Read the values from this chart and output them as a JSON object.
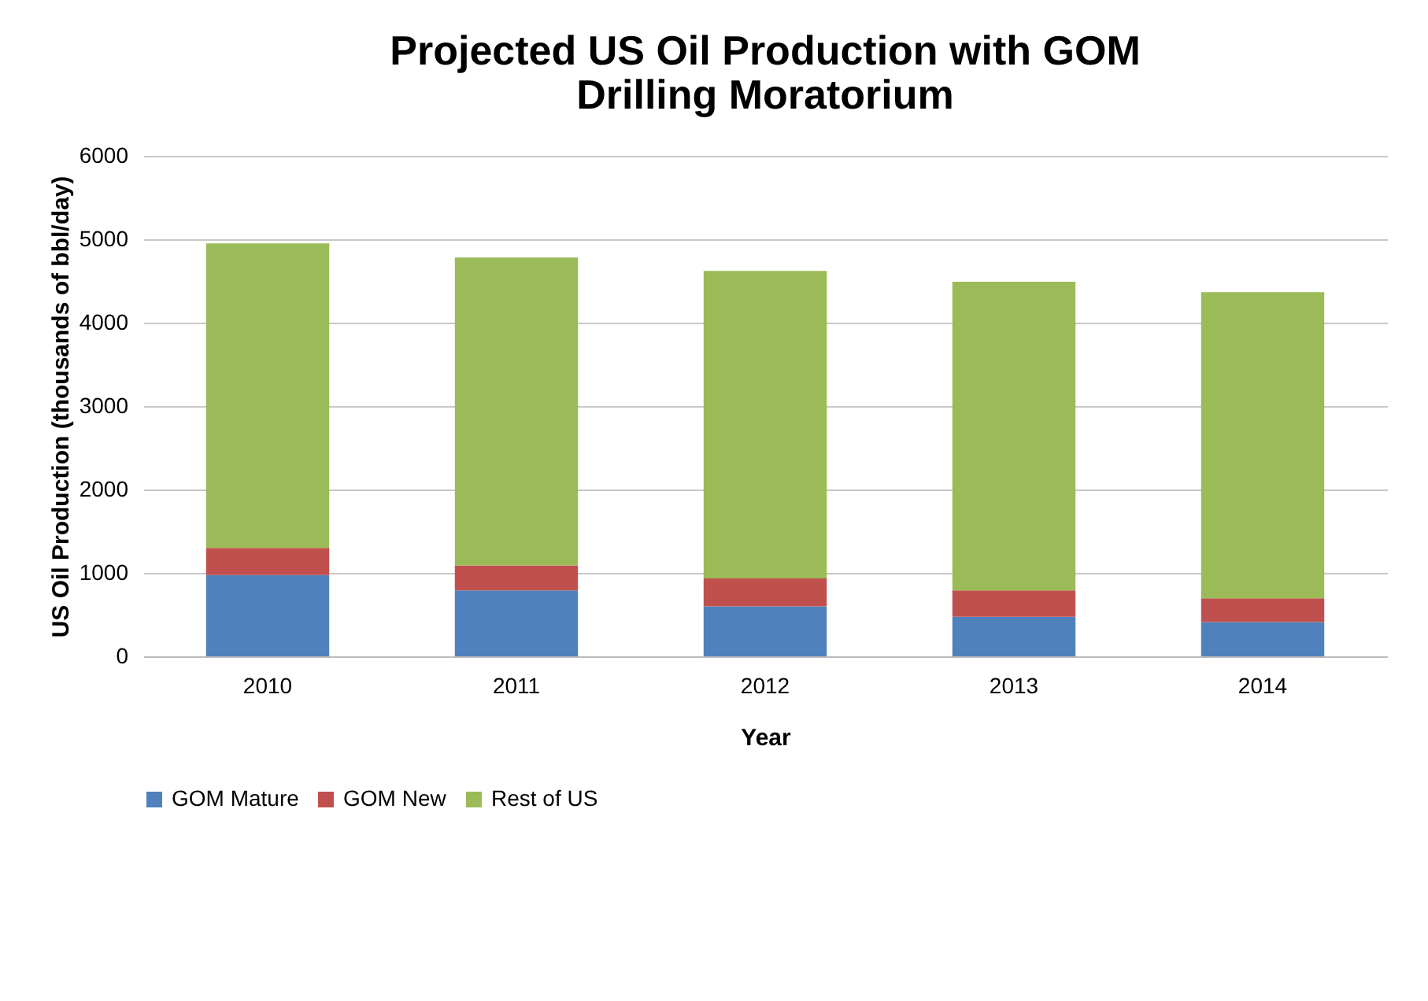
{
  "chart_data": {
    "type": "bar",
    "stacked": true,
    "title": "Projected US Oil Production with GOM Drilling Moratorium",
    "xlabel": "Year",
    "ylabel": "US Oil Production (thousands of bbl/day)",
    "categories": [
      "2010",
      "2011",
      "2012",
      "2013",
      "2014"
    ],
    "series": [
      {
        "name": "GOM Mature",
        "color": "#4f81bd",
        "values": [
          975,
          790,
          600,
          475,
          410
        ]
      },
      {
        "name": "GOM New",
        "color": "#c0504d",
        "values": [
          325,
          300,
          335,
          315,
          285
        ]
      },
      {
        "name": "Rest of US",
        "color": "#9bbb59",
        "values": [
          3650,
          3690,
          3685,
          3700,
          3670
        ]
      }
    ],
    "ylim": [
      0,
      6000
    ],
    "yticks": [
      0,
      1000,
      2000,
      3000,
      4000,
      5000,
      6000
    ],
    "grid": "y",
    "legend": "bottom"
  }
}
